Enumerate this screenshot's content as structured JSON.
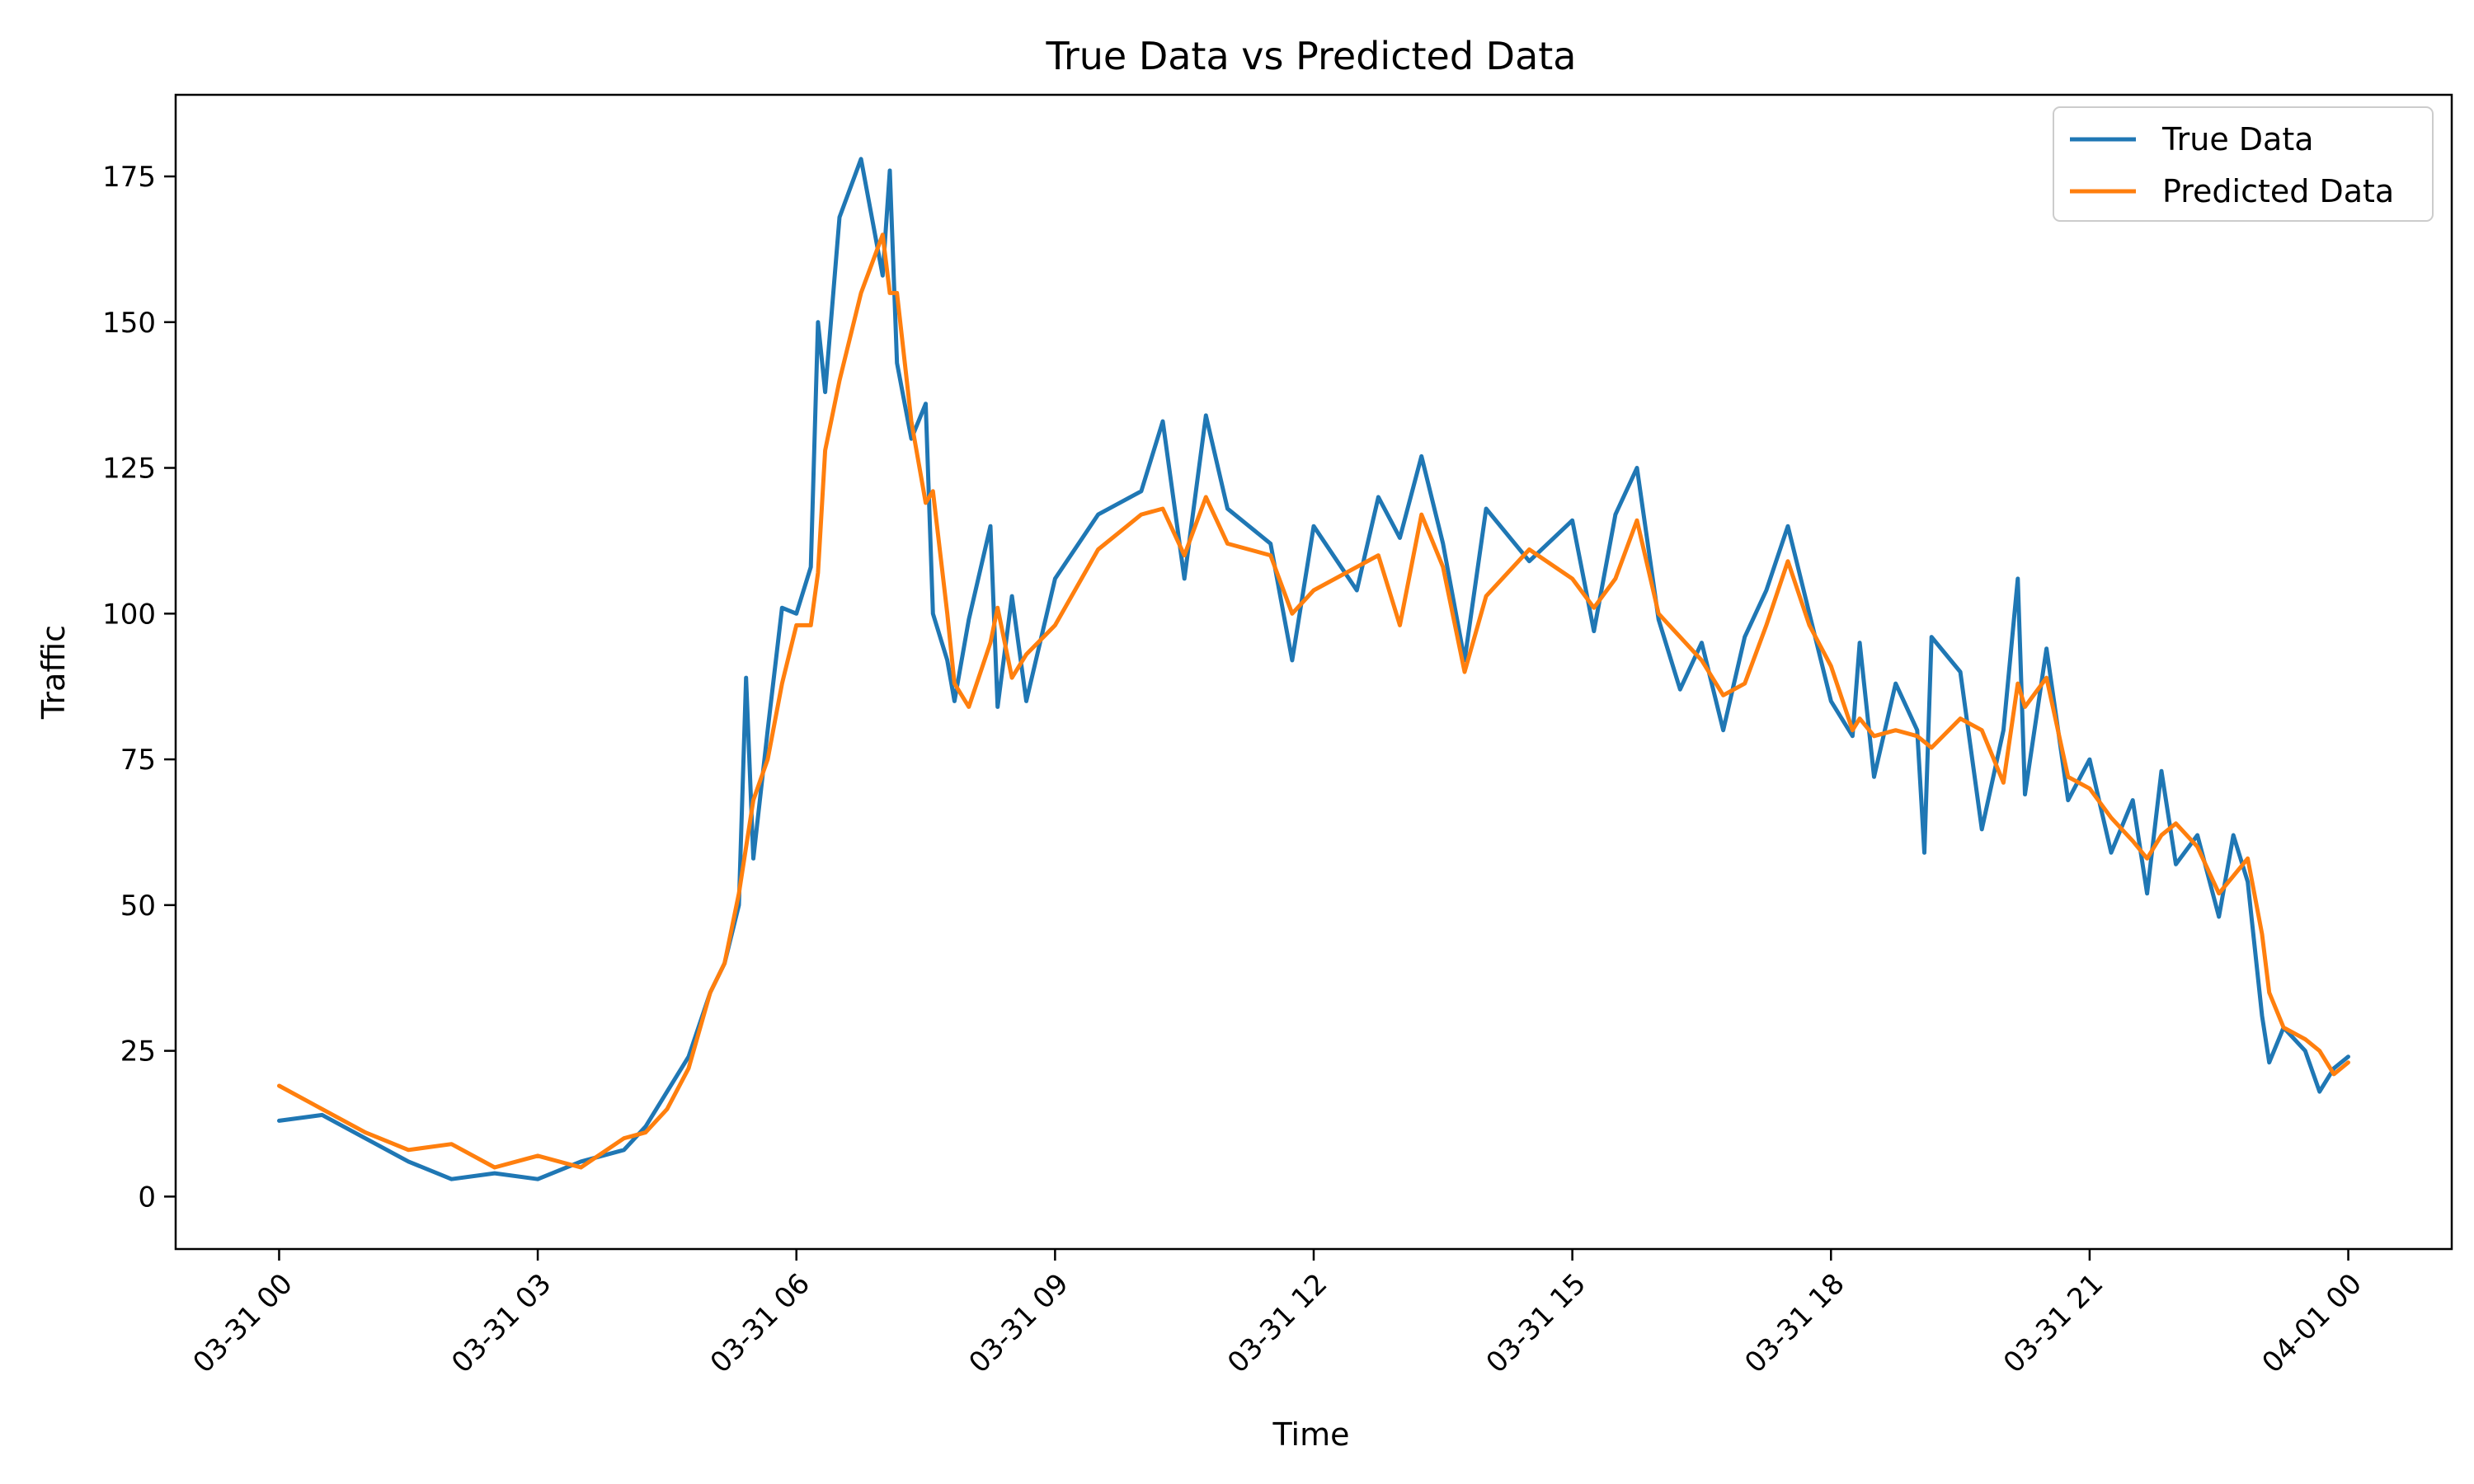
{
  "chart_data": {
    "type": "line",
    "title": "True Data vs Predicted Data",
    "xlabel": "Time",
    "ylabel": "Traffic",
    "x_ticks": [
      "03-31 00",
      "03-31 03",
      "03-31 06",
      "03-31 09",
      "03-31 12",
      "03-31 15",
      "03-31 18",
      "03-31 21",
      "04-01 00"
    ],
    "y_ticks": [
      "0",
      "25",
      "50",
      "75",
      "100",
      "125",
      "150",
      "175"
    ],
    "xlim": [
      "03-30 22:48",
      "04-01 01:12"
    ],
    "ylim": [
      -9,
      189
    ],
    "grid": false,
    "legend_position": "top-right",
    "series": [
      {
        "name": "True Data",
        "color": "#1f77b4",
        "points": [
          [
            "03-31 00:00",
            13
          ],
          [
            "03-31 00:30",
            14
          ],
          [
            "03-31 01:00",
            10
          ],
          [
            "03-31 01:30",
            6
          ],
          [
            "03-31 02:00",
            3
          ],
          [
            "03-31 02:30",
            4
          ],
          [
            "03-31 03:00",
            3
          ],
          [
            "03-31 03:30",
            6
          ],
          [
            "03-31 04:00",
            8
          ],
          [
            "03-31 04:15",
            12
          ],
          [
            "03-31 04:30",
            18
          ],
          [
            "03-31 04:45",
            24
          ],
          [
            "03-31 05:00",
            35
          ],
          [
            "03-31 05:10",
            40
          ],
          [
            "03-31 05:20",
            50
          ],
          [
            "03-31 05:25",
            89
          ],
          [
            "03-31 05:30",
            58
          ],
          [
            "03-31 05:40",
            80
          ],
          [
            "03-31 05:50",
            101
          ],
          [
            "03-31 06:00",
            100
          ],
          [
            "03-31 06:10",
            108
          ],
          [
            "03-31 06:15",
            150
          ],
          [
            "03-31 06:20",
            138
          ],
          [
            "03-31 06:30",
            168
          ],
          [
            "03-31 06:45",
            178
          ],
          [
            "03-31 07:00",
            158
          ],
          [
            "03-31 07:05",
            176
          ],
          [
            "03-31 07:10",
            143
          ],
          [
            "03-31 07:20",
            130
          ],
          [
            "03-31 07:30",
            136
          ],
          [
            "03-31 07:35",
            100
          ],
          [
            "03-31 07:45",
            92
          ],
          [
            "03-31 07:50",
            85
          ],
          [
            "03-31 08:00",
            99
          ],
          [
            "03-31 08:15",
            115
          ],
          [
            "03-31 08:20",
            84
          ],
          [
            "03-31 08:30",
            103
          ],
          [
            "03-31 08:40",
            85
          ],
          [
            "03-31 09:00",
            106
          ],
          [
            "03-31 09:30",
            117
          ],
          [
            "03-31 10:00",
            121
          ],
          [
            "03-31 10:15",
            133
          ],
          [
            "03-31 10:30",
            106
          ],
          [
            "03-31 10:45",
            134
          ],
          [
            "03-31 11:00",
            118
          ],
          [
            "03-31 11:30",
            112
          ],
          [
            "03-31 11:45",
            92
          ],
          [
            "03-31 12:00",
            115
          ],
          [
            "03-31 12:30",
            104
          ],
          [
            "03-31 12:45",
            120
          ],
          [
            "03-31 13:00",
            113
          ],
          [
            "03-31 13:15",
            127
          ],
          [
            "03-31 13:30",
            112
          ],
          [
            "03-31 13:45",
            92
          ],
          [
            "03-31 14:00",
            118
          ],
          [
            "03-31 14:30",
            109
          ],
          [
            "03-31 15:00",
            116
          ],
          [
            "03-31 15:15",
            97
          ],
          [
            "03-31 15:30",
            117
          ],
          [
            "03-31 15:45",
            125
          ],
          [
            "03-31 16:00",
            99
          ],
          [
            "03-31 16:15",
            87
          ],
          [
            "03-31 16:30",
            95
          ],
          [
            "03-31 16:45",
            80
          ],
          [
            "03-31 17:00",
            96
          ],
          [
            "03-31 17:15",
            104
          ],
          [
            "03-31 17:30",
            115
          ],
          [
            "03-31 17:45",
            100
          ],
          [
            "03-31 18:00",
            85
          ],
          [
            "03-31 18:15",
            79
          ],
          [
            "03-31 18:20",
            95
          ],
          [
            "03-31 18:30",
            72
          ],
          [
            "03-31 18:45",
            88
          ],
          [
            "03-31 19:00",
            80
          ],
          [
            "03-31 19:05",
            59
          ],
          [
            "03-31 19:10",
            96
          ],
          [
            "03-31 19:30",
            90
          ],
          [
            "03-31 19:45",
            63
          ],
          [
            "03-31 20:00",
            80
          ],
          [
            "03-31 20:10",
            106
          ],
          [
            "03-31 20:15",
            69
          ],
          [
            "03-31 20:30",
            94
          ],
          [
            "03-31 20:45",
            68
          ],
          [
            "03-31 21:00",
            75
          ],
          [
            "03-31 21:15",
            59
          ],
          [
            "03-31 21:30",
            68
          ],
          [
            "03-31 21:40",
            52
          ],
          [
            "03-31 21:50",
            73
          ],
          [
            "03-31 22:00",
            57
          ],
          [
            "03-31 22:15",
            62
          ],
          [
            "03-31 22:30",
            48
          ],
          [
            "03-31 22:40",
            62
          ],
          [
            "03-31 22:50",
            54
          ],
          [
            "03-31 23:00",
            31
          ],
          [
            "03-31 23:05",
            23
          ],
          [
            "03-31 23:15",
            29
          ],
          [
            "03-31 23:30",
            25
          ],
          [
            "03-31 23:40",
            18
          ],
          [
            "03-31 23:50",
            22
          ],
          [
            "04-01 00:00",
            24
          ]
        ]
      },
      {
        "name": "Predicted Data",
        "color": "#ff7f0e",
        "points": [
          [
            "03-31 00:00",
            19
          ],
          [
            "03-31 00:30",
            15
          ],
          [
            "03-31 01:00",
            11
          ],
          [
            "03-31 01:30",
            8
          ],
          [
            "03-31 02:00",
            9
          ],
          [
            "03-31 02:30",
            5
          ],
          [
            "03-31 03:00",
            7
          ],
          [
            "03-31 03:30",
            5
          ],
          [
            "03-31 04:00",
            10
          ],
          [
            "03-31 04:15",
            11
          ],
          [
            "03-31 04:30",
            15
          ],
          [
            "03-31 04:45",
            22
          ],
          [
            "03-31 05:00",
            35
          ],
          [
            "03-31 05:10",
            40
          ],
          [
            "03-31 05:20",
            52
          ],
          [
            "03-31 05:30",
            68
          ],
          [
            "03-31 05:40",
            75
          ],
          [
            "03-31 05:50",
            88
          ],
          [
            "03-31 06:00",
            98
          ],
          [
            "03-31 06:10",
            98
          ],
          [
            "03-31 06:15",
            107
          ],
          [
            "03-31 06:20",
            128
          ],
          [
            "03-31 06:30",
            140
          ],
          [
            "03-31 06:45",
            155
          ],
          [
            "03-31 07:00",
            165
          ],
          [
            "03-31 07:05",
            155
          ],
          [
            "03-31 07:10",
            155
          ],
          [
            "03-31 07:20",
            133
          ],
          [
            "03-31 07:30",
            119
          ],
          [
            "03-31 07:35",
            121
          ],
          [
            "03-31 07:45",
            100
          ],
          [
            "03-31 07:50",
            88
          ],
          [
            "03-31 08:00",
            84
          ],
          [
            "03-31 08:15",
            95
          ],
          [
            "03-31 08:20",
            101
          ],
          [
            "03-31 08:30",
            89
          ],
          [
            "03-31 08:40",
            93
          ],
          [
            "03-31 09:00",
            98
          ],
          [
            "03-31 09:30",
            111
          ],
          [
            "03-31 10:00",
            117
          ],
          [
            "03-31 10:15",
            118
          ],
          [
            "03-31 10:30",
            110
          ],
          [
            "03-31 10:45",
            120
          ],
          [
            "03-31 11:00",
            112
          ],
          [
            "03-31 11:30",
            110
          ],
          [
            "03-31 11:45",
            100
          ],
          [
            "03-31 12:00",
            104
          ],
          [
            "03-31 12:30",
            108
          ],
          [
            "03-31 12:45",
            110
          ],
          [
            "03-31 13:00",
            98
          ],
          [
            "03-31 13:15",
            117
          ],
          [
            "03-31 13:30",
            108
          ],
          [
            "03-31 13:45",
            90
          ],
          [
            "03-31 14:00",
            103
          ],
          [
            "03-31 14:30",
            111
          ],
          [
            "03-31 15:00",
            106
          ],
          [
            "03-31 15:15",
            101
          ],
          [
            "03-31 15:30",
            106
          ],
          [
            "03-31 15:45",
            116
          ],
          [
            "03-31 16:00",
            100
          ],
          [
            "03-31 16:15",
            96
          ],
          [
            "03-31 16:30",
            92
          ],
          [
            "03-31 16:45",
            86
          ],
          [
            "03-31 17:00",
            88
          ],
          [
            "03-31 17:15",
            98
          ],
          [
            "03-31 17:30",
            109
          ],
          [
            "03-31 17:45",
            98
          ],
          [
            "03-31 18:00",
            91
          ],
          [
            "03-31 18:15",
            80
          ],
          [
            "03-31 18:20",
            82
          ],
          [
            "03-31 18:30",
            79
          ],
          [
            "03-31 18:45",
            80
          ],
          [
            "03-31 19:00",
            79
          ],
          [
            "03-31 19:05",
            78
          ],
          [
            "03-31 19:10",
            77
          ],
          [
            "03-31 19:30",
            82
          ],
          [
            "03-31 19:45",
            80
          ],
          [
            "03-31 20:00",
            71
          ],
          [
            "03-31 20:10",
            88
          ],
          [
            "03-31 20:15",
            84
          ],
          [
            "03-31 20:30",
            89
          ],
          [
            "03-31 20:45",
            72
          ],
          [
            "03-31 21:00",
            70
          ],
          [
            "03-31 21:15",
            65
          ],
          [
            "03-31 21:30",
            61
          ],
          [
            "03-31 21:40",
            58
          ],
          [
            "03-31 21:50",
            62
          ],
          [
            "03-31 22:00",
            64
          ],
          [
            "03-31 22:15",
            60
          ],
          [
            "03-31 22:30",
            52
          ],
          [
            "03-31 22:40",
            55
          ],
          [
            "03-31 22:50",
            58
          ],
          [
            "03-31 23:00",
            45
          ],
          [
            "03-31 23:05",
            35
          ],
          [
            "03-31 23:15",
            29
          ],
          [
            "03-31 23:30",
            27
          ],
          [
            "03-31 23:40",
            25
          ],
          [
            "03-31 23:50",
            21
          ],
          [
            "04-01 00:00",
            23
          ]
        ]
      }
    ]
  }
}
